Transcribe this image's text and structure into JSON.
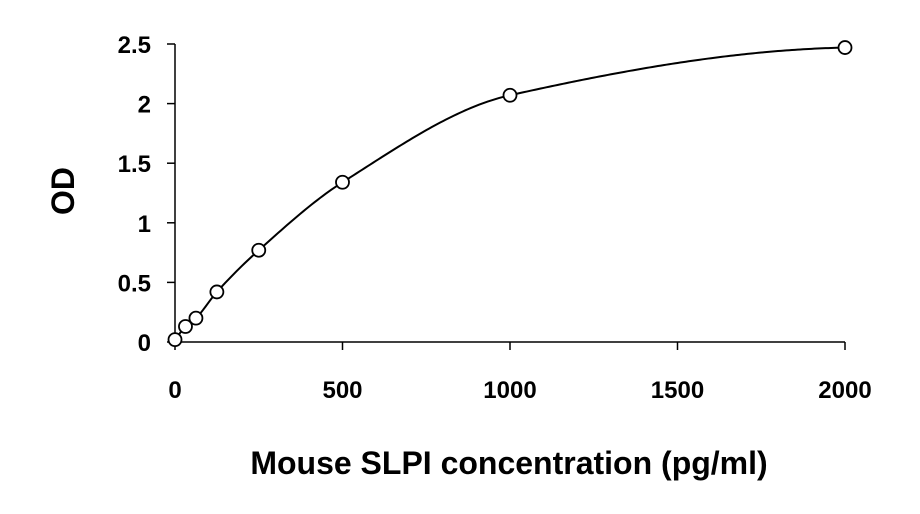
{
  "chart_data": {
    "type": "scatter",
    "title": "",
    "xlabel": "Mouse SLPI concentration (pg/ml)",
    "ylabel": "OD",
    "xlim": [
      0,
      2000
    ],
    "ylim": [
      0,
      2.5
    ],
    "xticks": [
      0,
      500,
      1000,
      1500,
      2000
    ],
    "xtick_labels": [
      "0",
      "500",
      "1000",
      "1500",
      "2000"
    ],
    "yticks": [
      0,
      0.5,
      1,
      1.5,
      2,
      2.5
    ],
    "ytick_labels": [
      "0",
      "0.5",
      "1",
      "1.5",
      "2",
      "2.5"
    ],
    "grid": false,
    "legend": "none",
    "colors": {
      "axis": "#000000",
      "curve": "#000000",
      "marker_stroke": "#000000",
      "marker_fill": "#ffffff"
    },
    "x": [
      0,
      31.25,
      62.5,
      125,
      250,
      500,
      1000,
      2000
    ],
    "y": [
      0.02,
      0.13,
      0.2,
      0.42,
      0.77,
      1.34,
      2.07,
      2.47
    ],
    "fit_curve": "smooth"
  }
}
